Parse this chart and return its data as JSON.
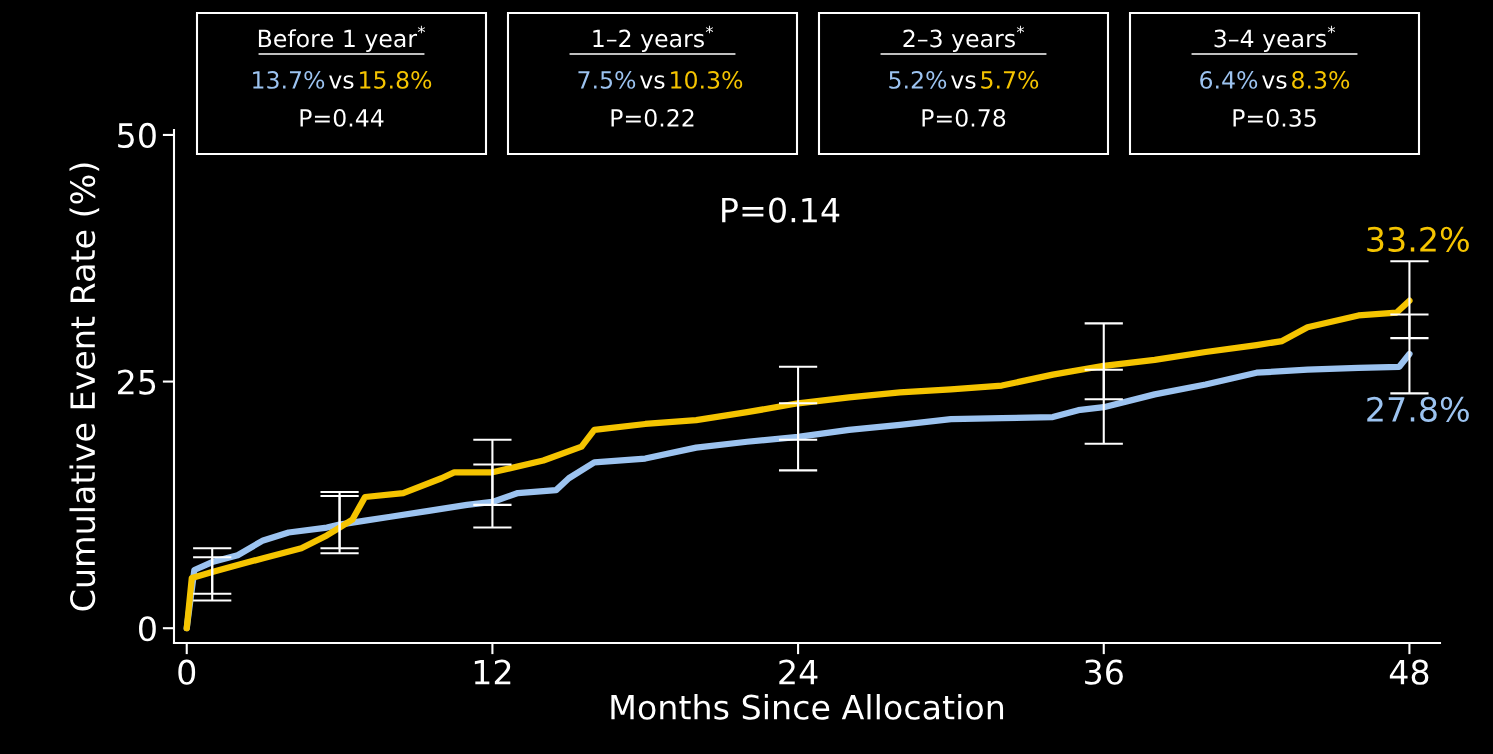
{
  "chart_data": {
    "type": "line",
    "xlabel": "Months Since Allocation",
    "ylabel": "Cumulative Event Rate (%)",
    "xlim": [
      -0.5,
      49.2
    ],
    "ylim": [
      -1.5,
      50.5
    ],
    "xticks": [
      0,
      12,
      24,
      36,
      48
    ],
    "yticks": [
      0,
      25,
      50
    ],
    "grid": false,
    "legend": false,
    "marker": "none",
    "line_style": "solid",
    "series": [
      {
        "color": "#9cc3f0",
        "x": [
          0,
          0.3,
          1,
          2,
          3,
          4,
          5.5,
          6,
          7,
          8,
          9.5,
          11,
          12,
          13,
          14.5,
          15,
          16,
          18,
          20,
          22,
          24,
          26,
          28,
          30,
          32,
          34,
          35,
          36,
          38,
          40,
          42,
          44,
          46,
          47.6,
          48
        ],
        "values": [
          0,
          5.9,
          6.7,
          7.4,
          8.9,
          9.7,
          10.2,
          10.5,
          10.9,
          11.3,
          11.9,
          12.5,
          12.8,
          13.7,
          14.0,
          15.2,
          16.8,
          17.2,
          18.3,
          18.9,
          19.4,
          20.1,
          20.6,
          21.2,
          21.3,
          21.4,
          22.1,
          22.4,
          23.7,
          24.7,
          25.9,
          26.2,
          26.4,
          26.5,
          27.8
        ],
        "errors": [
          null,
          null,
          [
            3.5,
            8.1
          ],
          null,
          null,
          null,
          null,
          [
            7.6,
            13.4
          ],
          null,
          null,
          null,
          null,
          [
            10.2,
            16.6
          ],
          null,
          null,
          null,
          null,
          null,
          null,
          null,
          [
            16.0,
            22.8
          ],
          null,
          null,
          null,
          null,
          null,
          null,
          [
            18.7,
            26.2
          ],
          null,
          null,
          null,
          null,
          null,
          null,
          [
            23.8,
            31.8
          ]
        ],
        "value_labels": [
          null,
          null,
          null,
          null,
          null,
          null,
          null,
          null,
          null,
          null,
          null,
          null,
          null,
          null,
          null,
          null,
          null,
          null,
          null,
          null,
          null,
          null,
          null,
          null,
          null,
          null,
          null,
          null,
          null,
          null,
          null,
          null,
          null,
          null,
          "27.8%"
        ]
      },
      {
        "color": "#f5c400",
        "x": [
          0,
          0.2,
          1,
          2,
          3,
          4.5,
          5.5,
          6,
          6.5,
          7,
          8.5,
          10,
          10.5,
          12,
          14,
          15.5,
          16,
          18,
          20,
          22,
          24,
          26,
          28,
          30,
          32,
          34,
          36,
          38,
          40,
          42,
          43,
          44,
          46,
          47.5,
          48
        ],
        "values": [
          0,
          5.1,
          5.7,
          6.4,
          7.1,
          8.1,
          9.4,
          10.2,
          11.0,
          13.3,
          13.7,
          15.2,
          15.8,
          15.8,
          17.0,
          18.4,
          20.1,
          20.7,
          21.1,
          21.9,
          22.8,
          23.4,
          23.9,
          24.2,
          24.6,
          25.7,
          26.6,
          27.2,
          28.0,
          28.7,
          29.1,
          30.5,
          31.7,
          32.0,
          33.2
        ],
        "errors": [
          null,
          null,
          [
            2.8,
            7.2
          ],
          null,
          null,
          null,
          null,
          [
            8.1,
            13.8
          ],
          null,
          null,
          null,
          null,
          null,
          [
            12.5,
            19.1
          ],
          null,
          null,
          null,
          null,
          null,
          null,
          [
            19.1,
            26.5
          ],
          null,
          null,
          null,
          null,
          null,
          [
            23.2,
            30.9
          ],
          null,
          null,
          null,
          null,
          null,
          null,
          null,
          [
            29.4,
            37.2
          ]
        ],
        "value_labels": [
          null,
          null,
          null,
          null,
          null,
          null,
          null,
          null,
          null,
          null,
          null,
          null,
          null,
          null,
          null,
          null,
          null,
          null,
          null,
          null,
          null,
          null,
          null,
          null,
          null,
          null,
          null,
          null,
          null,
          null,
          null,
          null,
          null,
          null,
          "33.2%"
        ]
      }
    ],
    "annotations": [
      "P=0.14",
      "Before 1 year$^{*}$",
      "13.7%",
      "vs",
      "15.8%",
      "P=0.44",
      "1–2 years$^{*}$",
      "7.5%",
      "vs",
      "10.3%",
      "P=0.22",
      "2–3 years$^{*}$",
      "5.2%",
      "vs",
      "5.7%",
      "P=0.78",
      "3–4 years$^{*}$",
      "6.4%",
      "vs",
      "8.3%",
      "P=0.35"
    ]
  }
}
